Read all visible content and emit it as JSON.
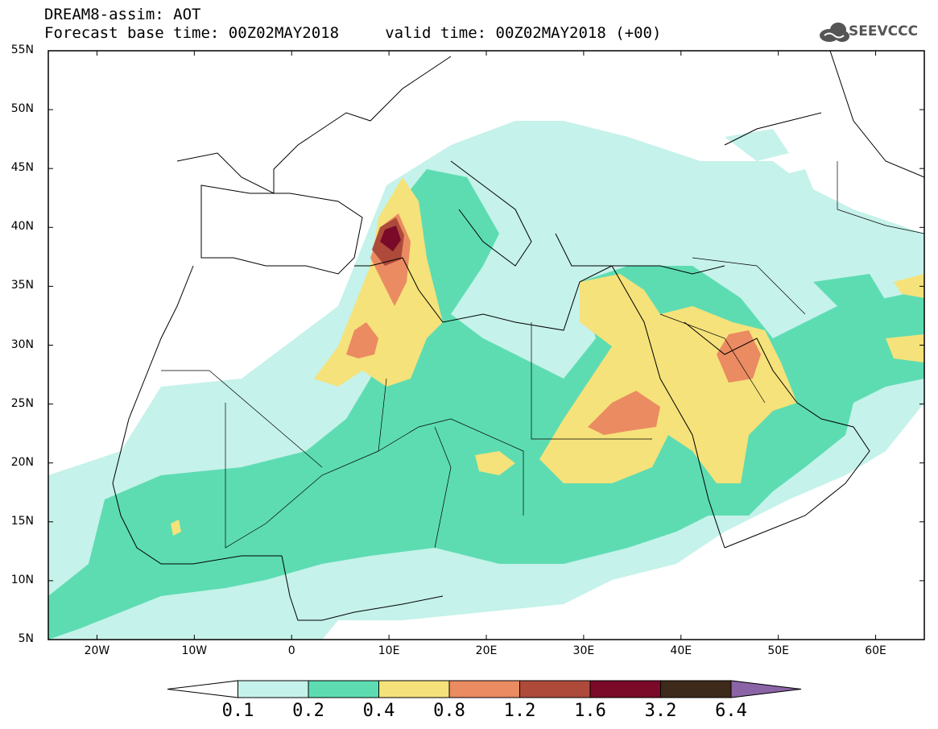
{
  "header": {
    "title_line1": "DREAM8-assim: AOT",
    "title_line2": "Forecast base time: 00Z02MAY2018     valid time: 00Z02MAY2018 (+00)"
  },
  "logo": {
    "text": "SEEVCCC",
    "icon": "cloud-icon"
  },
  "map": {
    "lat_labels": [
      "55N",
      "50N",
      "45N",
      "40N",
      "35N",
      "30N",
      "25N",
      "20N",
      "15N",
      "10N",
      "5N"
    ],
    "lon_labels": [
      "20W",
      "10W",
      "0",
      "10E",
      "20E",
      "30E",
      "40E",
      "50E",
      "60E"
    ],
    "lon_range": [
      -25,
      65
    ],
    "lat_range": [
      5,
      55
    ]
  },
  "colorbar": {
    "labels": [
      "0.1",
      "0.2",
      "0.4",
      "0.8",
      "1.2",
      "1.6",
      "3.2",
      "6.4"
    ],
    "colors": [
      "#ffffff",
      "#c5f2ea",
      "#5ddcb2",
      "#f5e27a",
      "#eb8b62",
      "#ae4a3a",
      "#7a0a28",
      "#3e2a1a",
      "#8a64a6"
    ]
  }
}
